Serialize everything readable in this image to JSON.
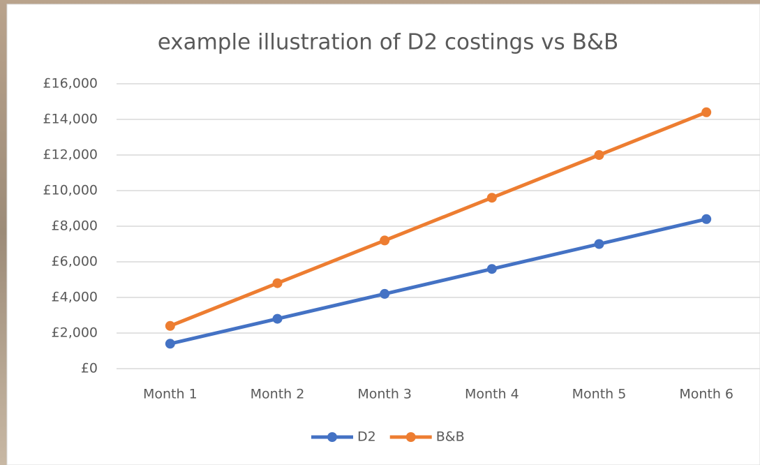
{
  "chart_data": {
    "type": "line",
    "title": "example illustration of D2 costings vs B&B",
    "categories": [
      "Month 1",
      "Month 2",
      "Month 3",
      "Month 4",
      "Month 5",
      "Month 6"
    ],
    "series": [
      {
        "name": "D2",
        "color": "#4472c4",
        "values": [
          1400,
          2800,
          4200,
          5600,
          7000,
          8400
        ]
      },
      {
        "name": "B&B",
        "color": "#ed7d31",
        "values": [
          2400,
          4800,
          7200,
          9600,
          12000,
          14400
        ]
      }
    ],
    "ylim": [
      0,
      16000
    ],
    "yticks": [
      {
        "value": 0,
        "label": "£0"
      },
      {
        "value": 2000,
        "label": "£2,000"
      },
      {
        "value": 4000,
        "label": "£4,000"
      },
      {
        "value": 6000,
        "label": "£6,000"
      },
      {
        "value": 8000,
        "label": "£8,000"
      },
      {
        "value": 10000,
        "label": "£10,000"
      },
      {
        "value": 12000,
        "label": "£12,000"
      },
      {
        "value": 14000,
        "label": "£14,000"
      },
      {
        "value": 16000,
        "label": "£16,000"
      }
    ],
    "grid": true,
    "legend": "bottom"
  }
}
